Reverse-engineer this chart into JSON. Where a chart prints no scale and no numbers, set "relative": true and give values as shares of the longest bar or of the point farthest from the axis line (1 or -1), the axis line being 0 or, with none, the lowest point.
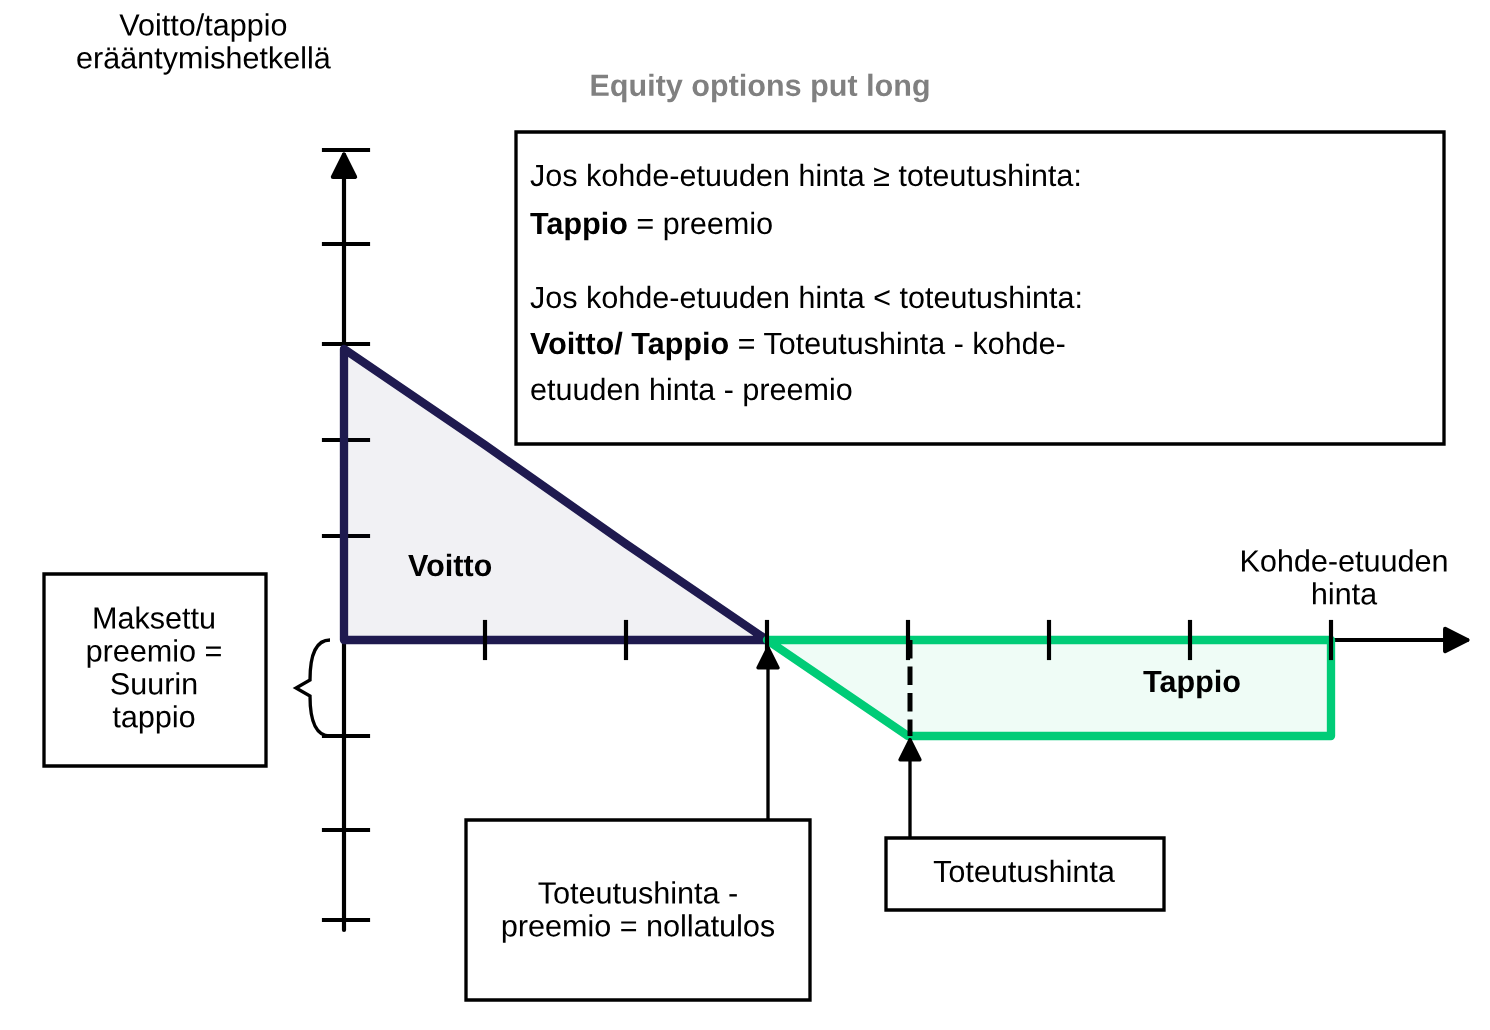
{
  "chart_data": {
    "type": "area",
    "title": "Equity options put long",
    "xlabel": "Kohde-etuuden\nhinta",
    "relative": true,
    "categories": [
      null,
      null,
      null,
      null,
      null,
      null,
      null,
      null
    ],
    "series": [
      {
        "color": "#1f1a4f",
        "values": [
          1,
          0.67,
          0.33,
          0,
          null,
          null,
          null,
          null
        ]
      },
      {
        "color": "#00cc77",
        "values": [
          null,
          null,
          null,
          0,
          -0.33,
          -0.33,
          -0.33,
          -0.33
        ]
      }
    ],
    "annotations": [
      "Voitto/tappio\nerääntymishetkellä",
      "Jos kohde-etuuden hinta ≥ toteutushinta:",
      "Tappio",
      " = preemio",
      "Jos kohde-etuuden hinta < toteutushinta:",
      "Voitto/ Tappio",
      " = Toteutushinta - kohde-",
      "etuuden hinta - preemio",
      "Voitto",
      "Tappio",
      "Maksettu\npreemio =\nSuurin\ntappio",
      "Toteutushinta",
      "Toteutushinta -\npreemio = nollatulos"
    ]
  }
}
